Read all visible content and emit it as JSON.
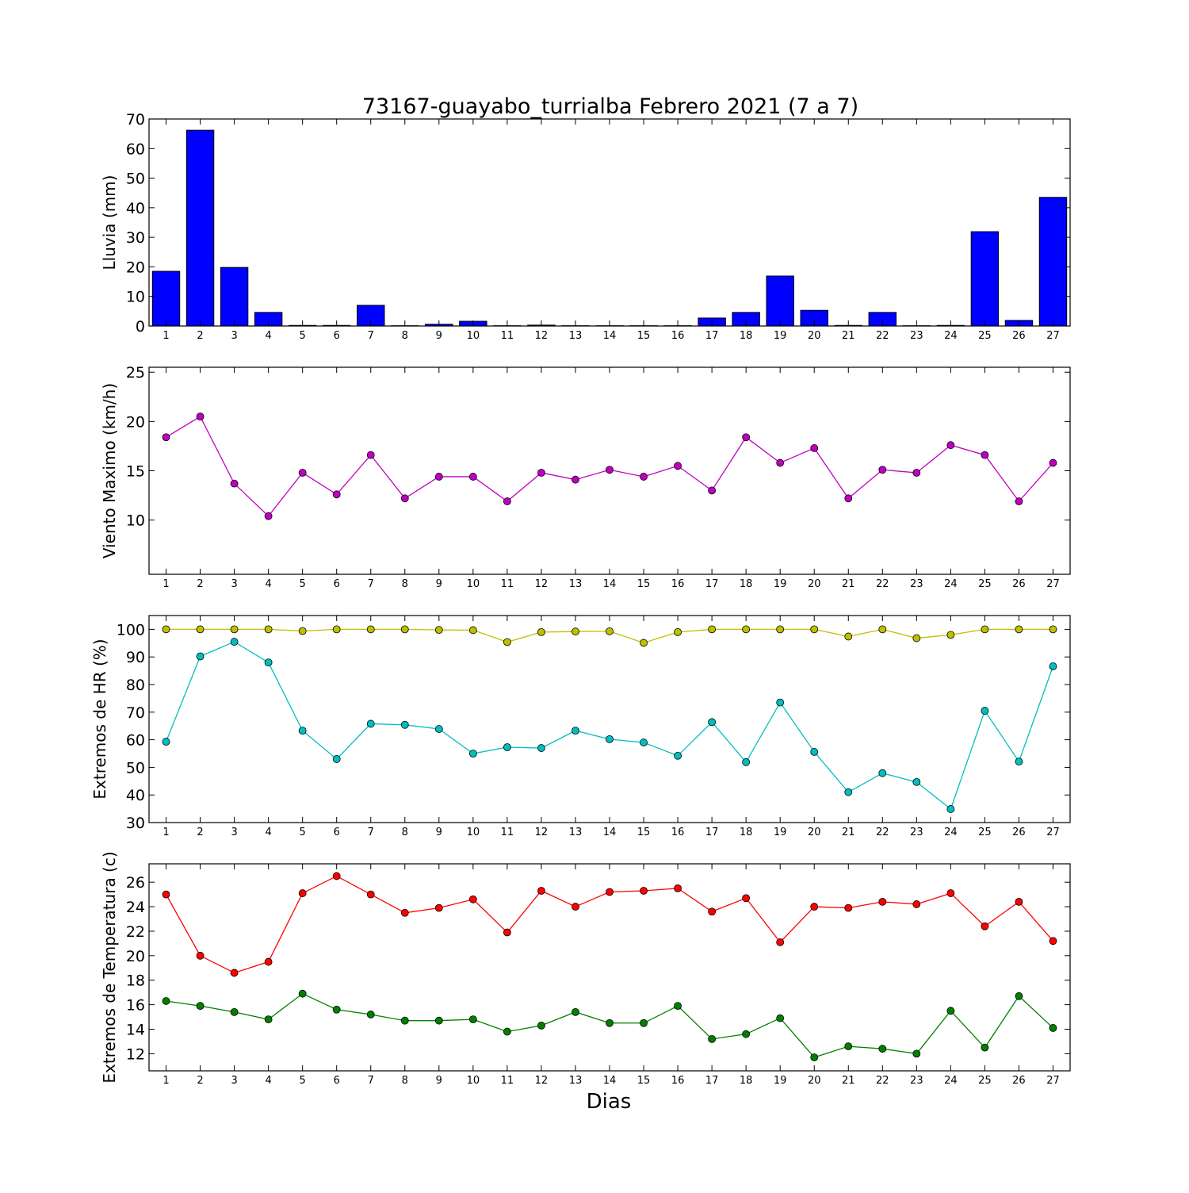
{
  "title": "73167-guayabo_turrialba Febrero 2021  (7 a 7)",
  "xlabel": "Dias",
  "chart_data": [
    {
      "type": "bar",
      "ylabel": "Lluvia (mm)",
      "ylim": [
        0,
        70
      ],
      "yticks": [
        0,
        10,
        20,
        30,
        40,
        50,
        60,
        70
      ],
      "categories": [
        1,
        2,
        3,
        4,
        5,
        6,
        7,
        8,
        9,
        10,
        11,
        12,
        13,
        14,
        15,
        16,
        17,
        18,
        19,
        20,
        21,
        22,
        23,
        24,
        25,
        26,
        27
      ],
      "series": [
        {
          "color": "#0000ff",
          "values": [
            18.5,
            66.2,
            19.8,
            4.6,
            0.2,
            0.2,
            7.0,
            0.1,
            0.6,
            1.6,
            0.1,
            0.3,
            0.1,
            0.1,
            0.1,
            0.1,
            2.7,
            4.6,
            16.9,
            5.3,
            0.2,
            4.6,
            0.1,
            0.2,
            31.9,
            1.9,
            43.5
          ]
        }
      ]
    },
    {
      "type": "line",
      "ylabel": "Viento Maximo (km/h)",
      "ylim": [
        4.5,
        25.5
      ],
      "yticks": [
        10,
        15,
        20,
        25
      ],
      "categories": [
        1,
        2,
        3,
        4,
        5,
        6,
        7,
        8,
        9,
        10,
        11,
        12,
        13,
        14,
        15,
        16,
        17,
        18,
        19,
        20,
        21,
        22,
        23,
        24,
        25,
        26,
        27
      ],
      "series": [
        {
          "color": "#bf00bf",
          "values": [
            18.4,
            20.5,
            13.7,
            10.4,
            14.8,
            12.6,
            16.6,
            12.2,
            14.4,
            14.4,
            11.9,
            14.8,
            14.1,
            15.1,
            14.4,
            15.5,
            13.0,
            18.4,
            15.8,
            17.3,
            12.2,
            15.1,
            14.8,
            17.6,
            16.6,
            11.9,
            15.8
          ]
        }
      ]
    },
    {
      "type": "line",
      "ylabel": "Extremos de HR (%)",
      "ylim": [
        30,
        105
      ],
      "yticks": [
        30,
        40,
        50,
        60,
        70,
        80,
        90,
        100
      ],
      "categories": [
        1,
        2,
        3,
        4,
        5,
        6,
        7,
        8,
        9,
        10,
        11,
        12,
        13,
        14,
        15,
        16,
        17,
        18,
        19,
        20,
        21,
        22,
        23,
        24,
        25,
        26,
        27
      ],
      "series": [
        {
          "color": "#bfbf00",
          "values": [
            100,
            100,
            100,
            100,
            99.4,
            100,
            100,
            100,
            99.8,
            99.7,
            95.4,
            99.0,
            99.2,
            99.3,
            95.1,
            99.0,
            100,
            100,
            100,
            100,
            97.4,
            100,
            96.8,
            98.0,
            100,
            100,
            100
          ]
        },
        {
          "color": "#00bfbf",
          "values": [
            59.3,
            90.2,
            95.5,
            88.0,
            63.3,
            53.0,
            65.8,
            65.4,
            63.9,
            55.0,
            57.3,
            57.0,
            63.3,
            60.2,
            59.0,
            54.2,
            66.4,
            51.9,
            73.5,
            55.6,
            41.0,
            47.9,
            44.7,
            34.9,
            70.5,
            52.1,
            86.6
          ]
        }
      ]
    },
    {
      "type": "line",
      "ylabel": "Extremos de Temperatura (c)",
      "ylim": [
        10.6,
        27.5
      ],
      "yticks": [
        12,
        14,
        16,
        18,
        20,
        22,
        24,
        26
      ],
      "categories": [
        1,
        2,
        3,
        4,
        5,
        6,
        7,
        8,
        9,
        10,
        11,
        12,
        13,
        14,
        15,
        16,
        17,
        18,
        19,
        20,
        21,
        22,
        23,
        24,
        25,
        26,
        27
      ],
      "series": [
        {
          "color": "#ff0000",
          "values": [
            25.0,
            20.0,
            18.6,
            19.5,
            25.1,
            26.5,
            25.0,
            23.5,
            23.9,
            24.6,
            21.9,
            25.3,
            24.0,
            25.2,
            25.3,
            25.5,
            23.6,
            24.7,
            21.1,
            24.0,
            23.9,
            24.4,
            24.2,
            25.1,
            22.4,
            24.4,
            21.2
          ]
        },
        {
          "color": "#008000",
          "values": [
            16.3,
            15.9,
            15.4,
            14.8,
            16.9,
            15.6,
            15.2,
            14.7,
            14.7,
            14.8,
            13.8,
            14.3,
            15.4,
            14.5,
            14.5,
            15.9,
            13.2,
            13.6,
            14.9,
            11.7,
            12.6,
            12.4,
            12.0,
            15.5,
            12.5,
            16.7,
            14.1
          ]
        }
      ]
    }
  ]
}
